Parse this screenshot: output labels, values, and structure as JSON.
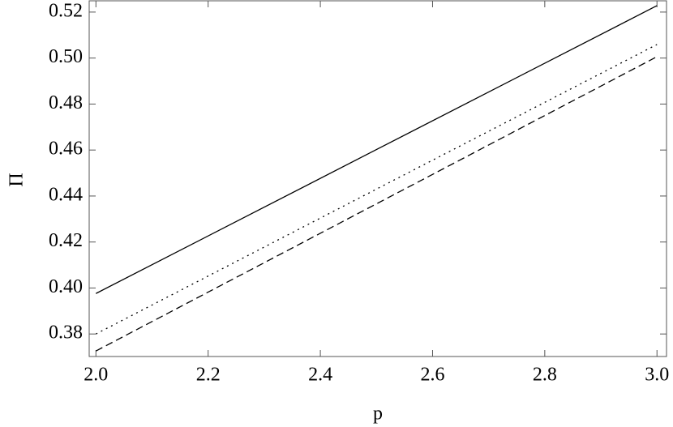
{
  "chart_data": {
    "type": "line",
    "x_label": "p",
    "y_label": "Π",
    "x": [
      2.0,
      2.5,
      3.0
    ],
    "series": [
      {
        "color": "#000000",
        "style": "solid",
        "values": [
          0.3976,
          0.4602,
          0.5228
        ]
      },
      {
        "color": "#000000",
        "style": "dotted",
        "values": [
          0.38,
          0.443,
          0.5059
        ]
      },
      {
        "color": "#000000",
        "style": "dashed",
        "values": [
          0.3726,
          0.4366,
          0.5006
        ]
      }
    ],
    "xlim": [
      1.988,
      3.017
    ],
    "ylim": [
      0.3702,
      0.5249
    ],
    "xticks": [
      {
        "value": 2,
        "label": "2.0"
      },
      2.2,
      2.4,
      2.6,
      2.8,
      {
        "value": 3,
        "label": "3.0"
      }
    ],
    "yticks": [
      0.38,
      {
        "value": 0.4,
        "label": "0.40"
      },
      0.42,
      0.44,
      0.46,
      0.48,
      {
        "value": 0.5,
        "label": "0.50"
      },
      0.52
    ],
    "grid": false
  }
}
